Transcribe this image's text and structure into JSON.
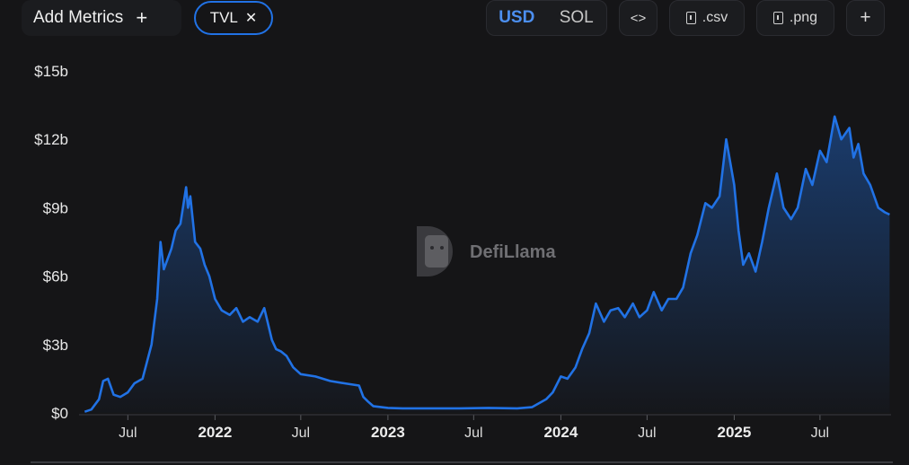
{
  "toolbar": {
    "add_metrics_label": "Add Metrics",
    "add_icon": "plus-icon",
    "metric_chip_label": "TVL",
    "remove_icon": "close-icon",
    "currency_usd": "USD",
    "currency_sol": "SOL",
    "active_currency": "USD",
    "embed_label": "<>",
    "csv_label": ".csv",
    "png_label": ".png",
    "more_label": "+"
  },
  "watermark": {
    "text": "DefiLlama",
    "icon": "llama-logo-icon"
  },
  "colors": {
    "line": "#2172e5",
    "background": "#151517",
    "active": "#4c8ff0"
  },
  "chart_data": {
    "type": "area",
    "series": [
      {
        "name": "TVL",
        "x": [
          "2021-04-01",
          "2021-04-15",
          "2021-05-01",
          "2021-05-10",
          "2021-05-20",
          "2021-06-01",
          "2021-06-15",
          "2021-07-01",
          "2021-07-15",
          "2021-08-01",
          "2021-08-10",
          "2021-08-20",
          "2021-09-01",
          "2021-09-08",
          "2021-09-15",
          "2021-10-01",
          "2021-10-10",
          "2021-10-20",
          "2021-11-01",
          "2021-11-05",
          "2021-11-10",
          "2021-11-20",
          "2021-12-01",
          "2021-12-10",
          "2021-12-20",
          "2022-01-01",
          "2022-01-15",
          "2022-02-01",
          "2022-02-15",
          "2022-03-01",
          "2022-03-15",
          "2022-04-01",
          "2022-04-15",
          "2022-05-01",
          "2022-05-10",
          "2022-05-20",
          "2022-06-01",
          "2022-06-15",
          "2022-07-01",
          "2022-08-01",
          "2022-09-01",
          "2022-10-01",
          "2022-11-01",
          "2022-11-10",
          "2022-11-20",
          "2022-12-01",
          "2023-01-01",
          "2023-02-01",
          "2023-04-01",
          "2023-06-01",
          "2023-08-01",
          "2023-10-01",
          "2023-11-01",
          "2023-12-01",
          "2023-12-15",
          "2024-01-01",
          "2024-01-15",
          "2024-02-01",
          "2024-02-15",
          "2024-03-01",
          "2024-03-15",
          "2024-04-01",
          "2024-04-15",
          "2024-05-01",
          "2024-05-15",
          "2024-06-01",
          "2024-06-15",
          "2024-07-01",
          "2024-07-15",
          "2024-08-01",
          "2024-08-15",
          "2024-09-01",
          "2024-09-15",
          "2024-10-01",
          "2024-10-15",
          "2024-11-01",
          "2024-11-15",
          "2024-12-01",
          "2024-12-15",
          "2025-01-01",
          "2025-01-10",
          "2025-01-20",
          "2025-02-01",
          "2025-02-15",
          "2025-03-01",
          "2025-03-15",
          "2025-04-01",
          "2025-04-15",
          "2025-05-01",
          "2025-05-15",
          "2025-06-01",
          "2025-06-15",
          "2025-07-01",
          "2025-07-15",
          "2025-08-01",
          "2025-08-15",
          "2025-09-01",
          "2025-09-10",
          "2025-09-20",
          "2025-10-01",
          "2025-10-15",
          "2025-11-01",
          "2025-11-15",
          "2025-11-25"
        ],
        "values": [
          0.05,
          0.15,
          0.6,
          1.4,
          1.5,
          0.8,
          0.7,
          0.9,
          1.3,
          1.5,
          2.2,
          3.0,
          5.0,
          7.5,
          6.3,
          7.2,
          8.0,
          8.3,
          9.9,
          9.0,
          9.5,
          7.5,
          7.2,
          6.5,
          6.0,
          5.0,
          4.5,
          4.3,
          4.6,
          4.0,
          4.2,
          4.0,
          4.6,
          3.2,
          2.8,
          2.7,
          2.5,
          2.0,
          1.7,
          1.6,
          1.4,
          1.3,
          1.2,
          0.7,
          0.5,
          0.3,
          0.22,
          0.2,
          0.2,
          0.2,
          0.22,
          0.2,
          0.25,
          0.6,
          0.9,
          1.6,
          1.5,
          2.0,
          2.8,
          3.5,
          4.8,
          4.0,
          4.5,
          4.6,
          4.2,
          4.8,
          4.2,
          4.5,
          5.3,
          4.5,
          5.0,
          5.0,
          5.5,
          7.0,
          7.8,
          9.2,
          9.0,
          9.5,
          12.0,
          10.0,
          8.0,
          6.5,
          7.0,
          6.2,
          7.5,
          9.0,
          10.5,
          9.0,
          8.5,
          9.0,
          10.7,
          10.0,
          11.5,
          11.0,
          13.0,
          12.0,
          12.5,
          11.2,
          11.8,
          10.5,
          10.0,
          9.0,
          8.8,
          8.7
        ]
      }
    ],
    "y_ticks": [
      "$0",
      "$3b",
      "$6b",
      "$9b",
      "$12b",
      "$15b"
    ],
    "x_ticks": [
      {
        "date": "2021-07-01",
        "label": "Jul",
        "year": false
      },
      {
        "date": "2022-01-01",
        "label": "2022",
        "year": true
      },
      {
        "date": "2022-07-01",
        "label": "Jul",
        "year": false
      },
      {
        "date": "2023-01-01",
        "label": "2023",
        "year": true
      },
      {
        "date": "2023-07-01",
        "label": "Jul",
        "year": false
      },
      {
        "date": "2024-01-01",
        "label": "2024",
        "year": true
      },
      {
        "date": "2024-07-01",
        "label": "Jul",
        "year": false
      },
      {
        "date": "2025-01-01",
        "label": "2025",
        "year": true
      },
      {
        "date": "2025-07-01",
        "label": "Jul",
        "year": false
      }
    ],
    "ylim": [
      0,
      15
    ],
    "xlim": [
      "2021-03-20",
      "2025-11-28"
    ],
    "grid": false,
    "legend": "none"
  }
}
